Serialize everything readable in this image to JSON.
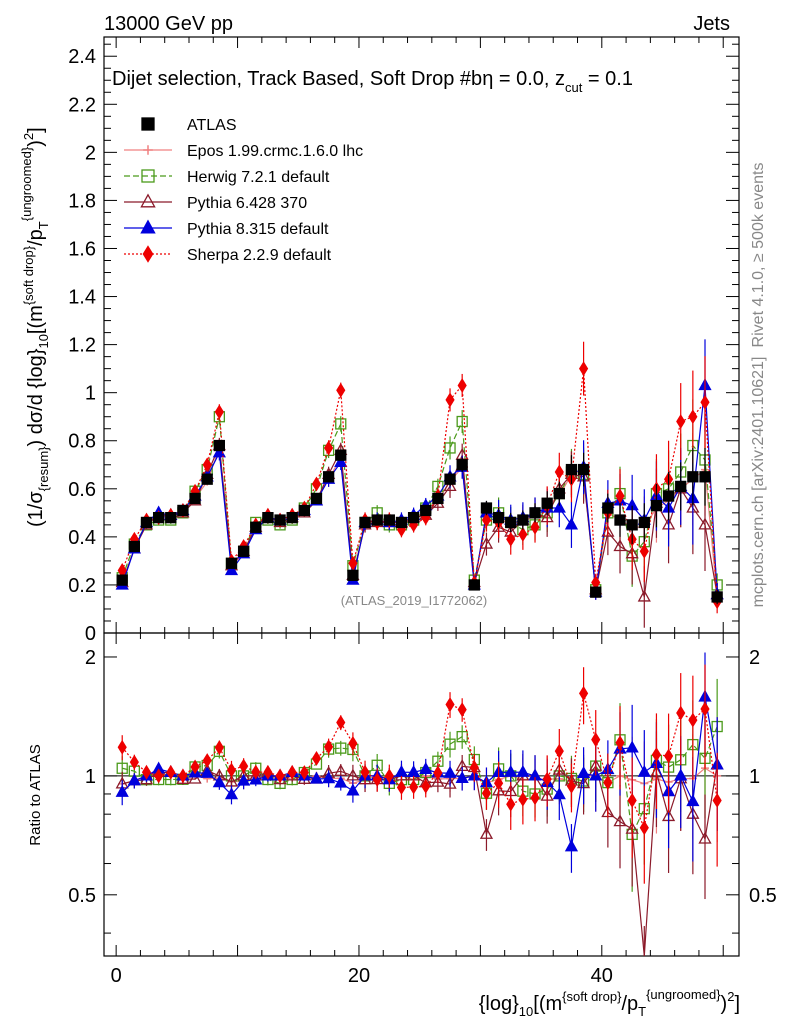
{
  "header": {
    "energy": "13000 GeV pp",
    "process": "Jets"
  },
  "side_labels": {
    "rivet": "Rivet 4.1.0, ≥ 500k events",
    "mcplots": "mcplots.cern.ch [arXiv:2401.10621]"
  },
  "watermark": "(ATLAS_2019_I1772062)",
  "chart_data": {
    "type": "scatter",
    "title": "Dijet selection, Track Based, Soft Drop #bη = 0.0, z_cut = 0.1",
    "xlabel": "{log}_10[(m^{soft drop}/p_T^{ungroomed})^2]",
    "ylabel": "(1/σ_{resum}) dσ/d {log}_10[(m^{soft drop}/p_T^{ungroomed})^2]",
    "ratio_ylabel": "Ratio to ATLAS",
    "xlim": [
      -1,
      51.3
    ],
    "ylim": [
      0,
      2.48
    ],
    "ratio_ylim": [
      0.35,
      2.3
    ],
    "x_ticks": [
      "0",
      "20",
      "40"
    ],
    "y_ticks": [
      "0",
      "0.2",
      "0.4",
      "0.6",
      "0.8",
      "1",
      "1.2",
      "1.4",
      "1.6",
      "1.8",
      "2",
      "2.2",
      "2.4"
    ],
    "ratio_ticks": [
      "0.5",
      "1",
      "2"
    ],
    "x": [
      0.5,
      1.5,
      2.5,
      3.5,
      4.5,
      5.5,
      6.5,
      7.5,
      8.5,
      9.5,
      10.5,
      11.5,
      12.5,
      13.5,
      14.5,
      15.5,
      16.5,
      17.5,
      18.5,
      19.5,
      20.5,
      21.5,
      22.5,
      23.5,
      24.5,
      25.5,
      26.5,
      27.5,
      28.5,
      29.5,
      30.5,
      31.5,
      32.5,
      33.5,
      34.5,
      35.5,
      36.5,
      37.5,
      38.5,
      39.5,
      40.5,
      41.5,
      42.5,
      43.5,
      44.5,
      45.5,
      46.5,
      47.5,
      48.5,
      49.5
    ],
    "series": [
      {
        "name": "ATLAS",
        "legend": "ATLAS",
        "color": "#000000",
        "values": [
          0.22,
          0.36,
          0.46,
          0.48,
          0.48,
          0.51,
          0.56,
          0.64,
          0.78,
          0.29,
          0.34,
          0.44,
          0.48,
          0.47,
          0.48,
          0.51,
          0.56,
          0.65,
          0.74,
          0.24,
          0.46,
          0.47,
          0.47,
          0.46,
          0.48,
          0.51,
          0.56,
          0.64,
          0.7,
          0.2,
          0.52,
          0.48,
          0.46,
          0.47,
          0.5,
          0.54,
          0.58,
          0.68,
          0.68,
          0.17,
          0.52,
          0.47,
          0.45,
          0.46,
          0.53,
          0.57,
          0.61,
          0.65,
          0.65,
          0.15
        ],
        "errors": [
          0.01,
          0.01,
          0.01,
          0.01,
          0.01,
          0.01,
          0.01,
          0.01,
          0.02,
          0.01,
          0.01,
          0.01,
          0.01,
          0.01,
          0.01,
          0.01,
          0.01,
          0.02,
          0.02,
          0.01,
          0.02,
          0.02,
          0.02,
          0.02,
          0.02,
          0.02,
          0.02,
          0.03,
          0.03,
          0.01,
          0.03,
          0.04,
          0.04,
          0.04,
          0.04,
          0.05,
          0.05,
          0.06,
          0.07,
          0.02,
          0.06,
          0.07,
          0.08,
          0.08,
          0.09,
          0.1,
          0.1,
          0.12,
          0.12,
          0.03
        ]
      },
      {
        "name": "Epos",
        "legend": "Epos 1.99.crmc.1.6.0 lhc",
        "color": "#f08080",
        "values": [
          0.21,
          0.35,
          0.46,
          0.49,
          0.48,
          0.5,
          0.56,
          0.63,
          0.77,
          0.28,
          0.33,
          0.44,
          0.47,
          0.47,
          0.47,
          0.5,
          0.56,
          0.64,
          0.73,
          0.23,
          0.45,
          0.47,
          0.46,
          0.46,
          0.47,
          0.51,
          0.55,
          0.63,
          0.69,
          0.2,
          0.5,
          0.47,
          0.46,
          0.46,
          0.49,
          0.53,
          0.57,
          0.66,
          0.68,
          0.17,
          0.5,
          0.47,
          0.44,
          0.44,
          0.52,
          0.55,
          0.6,
          0.64,
          0.68,
          0.15
        ]
      },
      {
        "name": "Herwig",
        "legend": "Herwig 7.2.1 default",
        "color": "#4a9a1a",
        "values": [
          0.23,
          0.37,
          0.45,
          0.47,
          0.47,
          0.5,
          0.59,
          0.68,
          0.9,
          0.29,
          0.34,
          0.46,
          0.47,
          0.45,
          0.47,
          0.52,
          0.6,
          0.76,
          0.87,
          0.28,
          0.46,
          0.5,
          0.45,
          0.45,
          0.47,
          0.52,
          0.61,
          0.77,
          0.88,
          0.22,
          0.47,
          0.5,
          0.46,
          0.43,
          0.45,
          0.5,
          0.58,
          0.67,
          0.66,
          0.18,
          0.5,
          0.58,
          0.32,
          0.38,
          0.58,
          0.6,
          0.67,
          0.78,
          0.72,
          0.2
        ]
      },
      {
        "name": "Pythia6",
        "legend": "Pythia 6.428 370",
        "color": "#8b1a2a",
        "values": [
          0.21,
          0.35,
          0.45,
          0.49,
          0.49,
          0.5,
          0.55,
          0.66,
          0.78,
          0.28,
          0.34,
          0.44,
          0.49,
          0.46,
          0.48,
          0.5,
          0.55,
          0.66,
          0.76,
          0.24,
          0.45,
          0.46,
          0.46,
          0.46,
          0.48,
          0.49,
          0.54,
          0.61,
          0.74,
          0.21,
          0.37,
          0.44,
          0.42,
          0.47,
          0.5,
          0.48,
          0.6,
          0.66,
          0.65,
          0.18,
          0.42,
          0.36,
          0.33,
          0.15,
          0.54,
          0.45,
          0.6,
          0.52,
          0.45,
          0.16
        ]
      },
      {
        "name": "Pythia8",
        "legend": "Pythia 8.315 default",
        "color": "#0000dd",
        "values": [
          0.2,
          0.35,
          0.46,
          0.5,
          0.49,
          0.51,
          0.57,
          0.65,
          0.75,
          0.26,
          0.33,
          0.43,
          0.48,
          0.47,
          0.49,
          0.51,
          0.55,
          0.64,
          0.71,
          0.22,
          0.46,
          0.47,
          0.46,
          0.47,
          0.49,
          0.53,
          0.57,
          0.65,
          0.69,
          0.2,
          0.5,
          0.49,
          0.47,
          0.48,
          0.5,
          0.52,
          0.52,
          0.45,
          0.69,
          0.17,
          0.54,
          0.55,
          0.53,
          0.47,
          0.57,
          0.52,
          0.61,
          0.56,
          1.03,
          0.16
        ]
      },
      {
        "name": "Sherpa",
        "legend": "Sherpa 2.2.9 default",
        "color": "#ee0000",
        "values": [
          0.26,
          0.39,
          0.47,
          0.48,
          0.49,
          0.51,
          0.59,
          0.7,
          0.92,
          0.3,
          0.36,
          0.45,
          0.49,
          0.47,
          0.49,
          0.52,
          0.62,
          0.77,
          1.01,
          0.29,
          0.47,
          0.46,
          0.47,
          0.43,
          0.45,
          0.48,
          0.57,
          0.97,
          1.03,
          0.21,
          0.47,
          0.46,
          0.39,
          0.41,
          0.44,
          0.53,
          0.67,
          0.64,
          1.1,
          0.21,
          0.5,
          0.57,
          0.39,
          0.34,
          0.6,
          0.64,
          0.88,
          0.9,
          0.96,
          0.13
        ]
      }
    ]
  }
}
